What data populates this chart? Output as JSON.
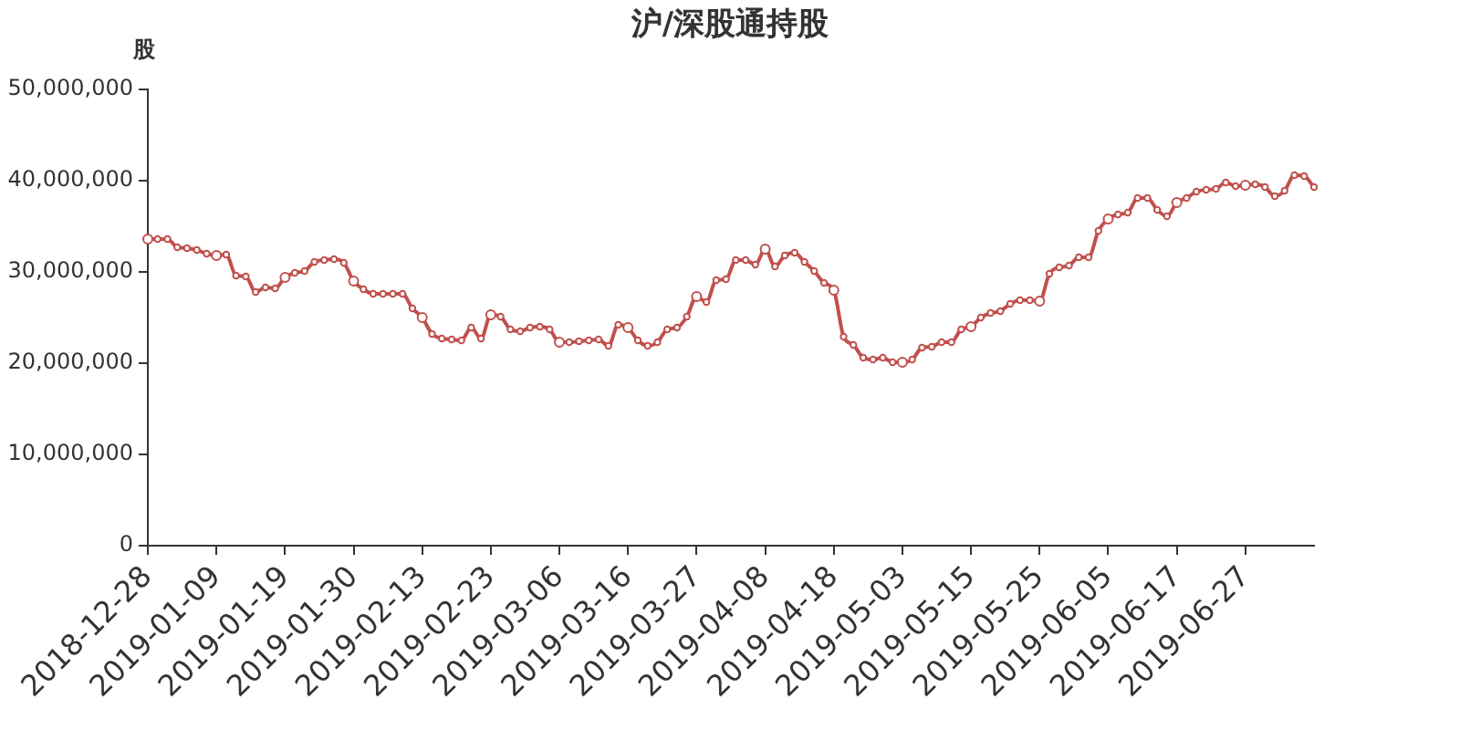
{
  "chart_data": {
    "type": "line",
    "title": "沪/深股通持股",
    "ylabel": "股",
    "categories": [
      "2018-12-28",
      null,
      null,
      null,
      null,
      null,
      null,
      "2019-01-09",
      null,
      null,
      null,
      null,
      null,
      null,
      "2019-01-19",
      null,
      null,
      null,
      null,
      null,
      null,
      "2019-01-30",
      null,
      null,
      null,
      null,
      null,
      null,
      "2019-02-13",
      null,
      null,
      null,
      null,
      null,
      null,
      "2019-02-23",
      null,
      null,
      null,
      null,
      null,
      null,
      "2019-03-06",
      null,
      null,
      null,
      null,
      null,
      null,
      "2019-03-16",
      null,
      null,
      null,
      null,
      null,
      null,
      "2019-03-27",
      null,
      null,
      null,
      null,
      null,
      null,
      "2019-04-08",
      null,
      null,
      null,
      null,
      null,
      null,
      "2019-04-18",
      null,
      null,
      null,
      null,
      null,
      null,
      "2019-05-03",
      null,
      null,
      null,
      null,
      null,
      null,
      "2019-05-15",
      null,
      null,
      null,
      null,
      null,
      null,
      "2019-05-25",
      null,
      null,
      null,
      null,
      null,
      null,
      "2019-06-05",
      null,
      null,
      null,
      null,
      null,
      null,
      "2019-06-17",
      null,
      null,
      null,
      null,
      null,
      null,
      "2019-06-27",
      null,
      null,
      null,
      null,
      null,
      null,
      null
    ],
    "series": [
      {
        "color": "#c0504d",
        "values": [
          33600000,
          33600000,
          33600000,
          32700000,
          32600000,
          32400000,
          32000000,
          31800000,
          31900000,
          29600000,
          29500000,
          27800000,
          28300000,
          28200000,
          29400000,
          29900000,
          30100000,
          31100000,
          31300000,
          31400000,
          31000000,
          29000000,
          28100000,
          27600000,
          27600000,
          27600000,
          27600000,
          26000000,
          25000000,
          23200000,
          22700000,
          22600000,
          22500000,
          23900000,
          22700000,
          25300000,
          25100000,
          23700000,
          23500000,
          23900000,
          24000000,
          23700000,
          22300000,
          22300000,
          22400000,
          22500000,
          22600000,
          21900000,
          24200000,
          23900000,
          22500000,
          21900000,
          22300000,
          23700000,
          23900000,
          25100000,
          27300000,
          26700000,
          29100000,
          29200000,
          31300000,
          31300000,
          30800000,
          32500000,
          30600000,
          31800000,
          32100000,
          31100000,
          30100000,
          28800000,
          28000000,
          22900000,
          22000000,
          20600000,
          20400000,
          20600000,
          20100000,
          20100000,
          20400000,
          21700000,
          21800000,
          22300000,
          22300000,
          23700000,
          24000000,
          25000000,
          25500000,
          25700000,
          26500000,
          26900000,
          26900000,
          26800000,
          29800000,
          30500000,
          30700000,
          31600000,
          31600000,
          34500000,
          35800000,
          36300000,
          36500000,
          38100000,
          38100000,
          36800000,
          36100000,
          37600000,
          38100000,
          38800000,
          39000000,
          39100000,
          39800000,
          39400000,
          39500000,
          39600000,
          39300000,
          38300000,
          38900000,
          40600000,
          40500000,
          39300000
        ]
      }
    ],
    "ylim": [
      0,
      50000000
    ],
    "yticks": [
      {
        "value": 0,
        "label": "0"
      },
      {
        "value": 10000000,
        "label": "10,000,000"
      },
      {
        "value": 20000000,
        "label": "20,000,000"
      },
      {
        "value": 30000000,
        "label": "30,000,000"
      },
      {
        "value": 40000000,
        "label": "40,000,000"
      },
      {
        "value": 50000000,
        "label": "50,000,000"
      }
    ],
    "grid": false,
    "legend": false,
    "marker": "circle",
    "line_style": "solid"
  }
}
